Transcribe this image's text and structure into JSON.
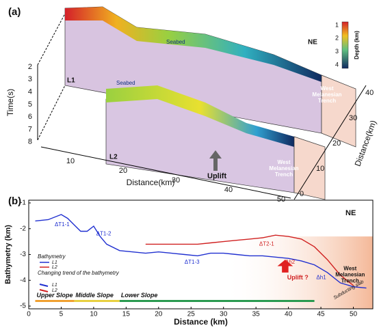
{
  "panel_a": {
    "label": "(a)",
    "time_axis_label": "Time(s)",
    "time_ticks": [
      2,
      3,
      4,
      5,
      6,
      7,
      8
    ],
    "distance_axis_label": "Distance(km)",
    "distance_ticks": [
      10,
      20,
      30,
      40,
      50
    ],
    "depth_axis_label": "Distance(km)",
    "depth_ticks": [
      0,
      10,
      20,
      30,
      40
    ],
    "colorbar_label": "Depth (km)",
    "colorbar_ticks": [
      1,
      2,
      3,
      4
    ],
    "north": "NE",
    "line1": "L1",
    "line2": "L2",
    "seabed1": "Seabed",
    "seabed2": "Seabed",
    "trench1": "West Melanesian Trench",
    "trench2": "West Melanesian Trench",
    "uplift": "Uplift"
  },
  "chart_data": {
    "type": "line",
    "label": "(b)",
    "xlabel": "Distance (km)",
    "ylabel": "Bathymetry (km)",
    "north": "NE",
    "xlim": [
      0,
      53
    ],
    "xticks": [
      0,
      5,
      10,
      15,
      20,
      25,
      30,
      35,
      40,
      45,
      50
    ],
    "ylim": [
      -5,
      -1
    ],
    "yticks": [
      -1,
      -2,
      -3,
      -4,
      -5
    ],
    "series": [
      {
        "name": "L1",
        "color": "#1f2fd0",
        "x": [
          1,
          3,
          5,
          6,
          7,
          8,
          9,
          10,
          11,
          12,
          14,
          16,
          18,
          20,
          22,
          24,
          26,
          28,
          30,
          32,
          34,
          36,
          38,
          40,
          42,
          44,
          46,
          48,
          50,
          52
        ],
        "values": [
          -1.7,
          -1.65,
          -1.45,
          -1.6,
          -1.85,
          -2.1,
          -2.1,
          -1.9,
          -2.3,
          -2.6,
          -2.85,
          -2.9,
          -2.95,
          -2.9,
          -2.95,
          -3.0,
          -3.05,
          -2.95,
          -2.95,
          -3.0,
          -3.05,
          -3.05,
          -3.1,
          -3.15,
          -3.25,
          -3.4,
          -3.7,
          -4.1,
          -4.25,
          -4.3
        ]
      },
      {
        "name": "L2",
        "color": "#d02020",
        "x": [
          18,
          20,
          22,
          24,
          26,
          28,
          30,
          32,
          34,
          36,
          38,
          40,
          42,
          44,
          46,
          48,
          50
        ],
        "values": [
          -2.6,
          -2.6,
          -2.6,
          -2.6,
          -2.6,
          -2.55,
          -2.5,
          -2.45,
          -2.4,
          -2.35,
          -2.25,
          -2.3,
          -2.4,
          -2.7,
          -3.2,
          -3.8,
          -4.2
        ]
      }
    ],
    "legend_title": "Bathymetry",
    "trend_title": "Changing trend of the bathymetry",
    "annotations": [
      "ΔT1-1",
      "ΔT1-2",
      "ΔT1-3",
      "ΔT2-1",
      "Δh1",
      "Δh2",
      "Uplift ?",
      "West Melanesian Trench",
      "Subducting slab"
    ],
    "zones": [
      {
        "name": "Upper Slope",
        "start": 1,
        "end": 7,
        "color": "#f0a030"
      },
      {
        "name": "Middle Slope",
        "start": 7,
        "end": 14,
        "color": "#e8d040"
      },
      {
        "name": "Lower Slope",
        "start": 14,
        "end": 44,
        "color": "#2a9a50"
      }
    ]
  }
}
